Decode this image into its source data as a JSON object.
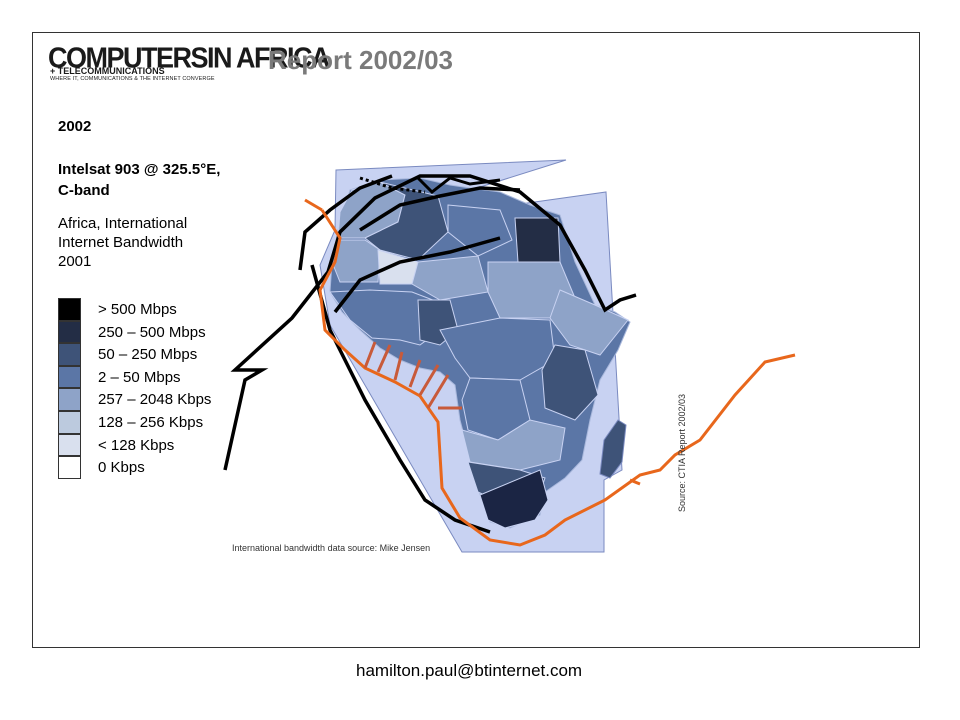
{
  "logo": {
    "main": "COMPUTERSIN AFRICA",
    "sub1": "+ TELECOMMUNICATIONS",
    "sub2": "WHERE IT, COMMUNICATIONS & THE INTERNET CONVERGE"
  },
  "header": {
    "title": "Report 2002/03"
  },
  "map": {
    "year": "2002",
    "satellite_line1": "Intelsat 903 @ 325.5°E,",
    "satellite_line2": "C-band",
    "title_line1": "Africa, International",
    "title_line2": "Internet Bandwidth",
    "title_line3": "2001",
    "bandwidth_source": "International bandwidth data source: Mike Jensen",
    "report_source": "Source: CTIA Report 2002/03"
  },
  "legend": [
    {
      "label": "> 500 Mbps",
      "color": "#000000"
    },
    {
      "label": "250 – 500 Mbps",
      "color": "#232d45"
    },
    {
      "label": "50 – 250 Mbps",
      "color": "#3e5378"
    },
    {
      "label": "2 – 50 Mbps",
      "color": "#5b76a6"
    },
    {
      "label": "257 – 2048 Kbps",
      "color": "#8ea3c8"
    },
    {
      "label": "128 – 256 Kbps",
      "color": "#bccade"
    },
    {
      "label": "< 128 Kbps",
      "color": "#d9e0ee"
    },
    {
      "label": "0 Kbps",
      "color": "#ffffff"
    }
  ],
  "colors": {
    "background_ocean": "#c8d2f2",
    "satellite_footprint": "#000000",
    "submarine_cable": "#e8671c",
    "cable_landing": "#c85a3a"
  },
  "footer": {
    "email": "hamilton.paul@btinternet.com"
  }
}
